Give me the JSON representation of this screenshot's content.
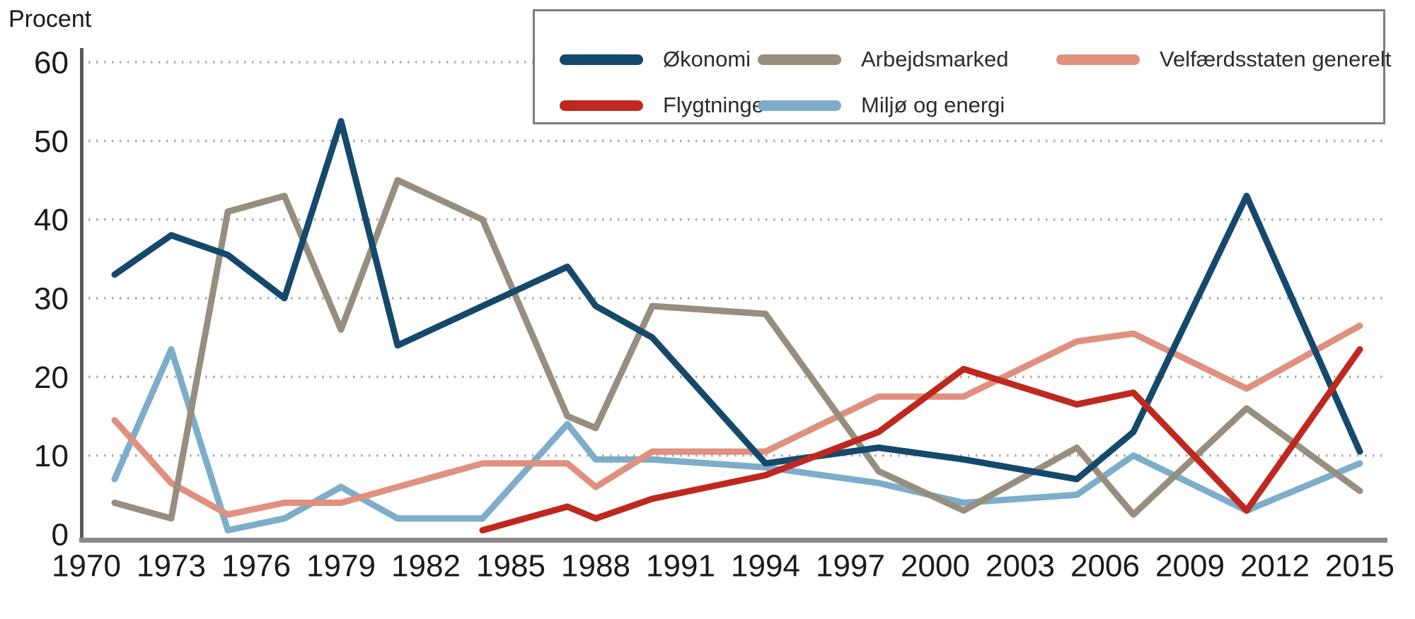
{
  "chart_data": {
    "type": "line",
    "title": "",
    "ylabel": "Procent",
    "xlabel": "",
    "ylim": [
      0,
      60
    ],
    "ytick_step": 10,
    "ytick_labels": [
      0,
      10,
      20,
      30,
      40,
      50,
      60
    ],
    "xlim": [
      1970,
      2016
    ],
    "x_ticks": [
      1970,
      1973,
      1976,
      1979,
      1982,
      1985,
      1988,
      1991,
      1994,
      1997,
      2000,
      2003,
      2006,
      2009,
      2012,
      2015
    ],
    "grid": "horizontal dotted",
    "legend_position": "top-right boxed, two rows",
    "colors": {
      "grid": "#ababab",
      "y_axis_line": "#5a5a5a",
      "x_axis_line": "#8a8a8a",
      "tick_text": "#1a1a1a",
      "legend_border": "#7d7d7d"
    },
    "series": [
      {
        "name": "Økonomi",
        "color": "#15496b",
        "points": [
          [
            1971,
            33
          ],
          [
            1973,
            38
          ],
          [
            1975,
            35.5
          ],
          [
            1977,
            30
          ],
          [
            1979,
            52.5
          ],
          [
            1981,
            24
          ],
          [
            1984,
            29
          ],
          [
            1987,
            34
          ],
          [
            1988,
            29
          ],
          [
            1990,
            25
          ],
          [
            1994,
            9
          ],
          [
            1998,
            11
          ],
          [
            2001,
            9.5
          ],
          [
            2005,
            7
          ],
          [
            2007,
            13
          ],
          [
            2011,
            43
          ],
          [
            2015,
            10.5
          ]
        ]
      },
      {
        "name": "Arbejdsmarked",
        "color": "#968e7e",
        "points": [
          [
            1971,
            4
          ],
          [
            1973,
            2
          ],
          [
            1975,
            41
          ],
          [
            1977,
            43
          ],
          [
            1979,
            26
          ],
          [
            1981,
            45
          ],
          [
            1984,
            40
          ],
          [
            1987,
            15
          ],
          [
            1988,
            13.5
          ],
          [
            1990,
            29
          ],
          [
            1994,
            28
          ],
          [
            1998,
            8
          ],
          [
            2001,
            3
          ],
          [
            2005,
            11
          ],
          [
            2007,
            2.5
          ],
          [
            2011,
            16
          ],
          [
            2015,
            5.5
          ]
        ]
      },
      {
        "name": "Velfærdsstaten generelt",
        "color": "#e0907e",
        "points": [
          [
            1971,
            14.5
          ],
          [
            1973,
            6.5
          ],
          [
            1975,
            2.5
          ],
          [
            1977,
            4
          ],
          [
            1979,
            4
          ],
          [
            1981,
            6
          ],
          [
            1984,
            9
          ],
          [
            1987,
            9
          ],
          [
            1988,
            6
          ],
          [
            1990,
            10.5
          ],
          [
            1994,
            10.5
          ],
          [
            1998,
            17.5
          ],
          [
            2001,
            17.5
          ],
          [
            2005,
            24.5
          ],
          [
            2007,
            25.5
          ],
          [
            2011,
            18.5
          ],
          [
            2015,
            26.5
          ]
        ]
      },
      {
        "name": "Flygtninge",
        "color": "#bf281f",
        "points": [
          [
            1984,
            0.5
          ],
          [
            1987,
            3.5
          ],
          [
            1988,
            2
          ],
          [
            1990,
            4.5
          ],
          [
            1994,
            7.5
          ],
          [
            1998,
            13
          ],
          [
            2001,
            21
          ],
          [
            2005,
            16.5
          ],
          [
            2007,
            18
          ],
          [
            2011,
            3
          ],
          [
            2015,
            23.5
          ]
        ]
      },
      {
        "name": "Miljø og energi",
        "color": "#7dadc9",
        "points": [
          [
            1971,
            7
          ],
          [
            1973,
            23.5
          ],
          [
            1975,
            0.5
          ],
          [
            1977,
            2
          ],
          [
            1979,
            6
          ],
          [
            1981,
            2
          ],
          [
            1984,
            2
          ],
          [
            1987,
            14
          ],
          [
            1988,
            9.5
          ],
          [
            1990,
            9.5
          ],
          [
            1994,
            8.5
          ],
          [
            1998,
            6.5
          ],
          [
            2001,
            4
          ],
          [
            2005,
            5
          ],
          [
            2007,
            10
          ],
          [
            2011,
            3
          ],
          [
            2015,
            9
          ]
        ]
      }
    ],
    "legend_rows": [
      [
        0,
        1,
        2
      ],
      [
        3,
        4
      ]
    ]
  }
}
